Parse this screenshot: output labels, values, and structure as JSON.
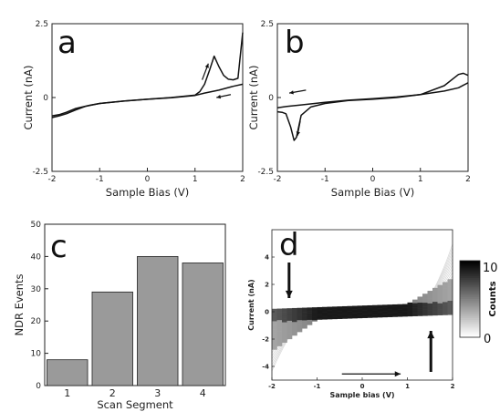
{
  "panels": {
    "a": {
      "label": "a"
    },
    "b": {
      "label": "b"
    },
    "c": {
      "label": "c"
    },
    "d": {
      "label": "d"
    }
  },
  "chart_data": [
    {
      "panel": "a",
      "type": "line",
      "xlabel": "Sample Bias (V)",
      "ylabel": "Current (nA)",
      "xlim": [
        -2,
        2
      ],
      "ylim": [
        -2.5,
        2.5
      ],
      "xticks": [
        "-2",
        "-1",
        "0",
        "1",
        "2"
      ],
      "yticks": [
        "2.5",
        "0",
        "-2.5"
      ],
      "series": [
        {
          "x": [
            -2,
            -1.85,
            -1.7,
            -1.5,
            -1.2,
            -1,
            -0.5,
            0,
            0.5,
            1,
            1.1,
            1.2,
            1.3,
            1.4,
            1.5,
            1.6,
            1.7,
            1.8,
            1.9,
            2
          ],
          "y": [
            -0.62,
            -0.58,
            -0.5,
            -0.37,
            -0.26,
            -0.2,
            -0.12,
            -0.06,
            0.0,
            0.08,
            0.2,
            0.45,
            0.9,
            1.4,
            1.05,
            0.75,
            0.62,
            0.6,
            0.65,
            2.2
          ]
        },
        {
          "x": [
            2,
            1.8,
            1.5,
            1.2,
            1,
            0.5,
            0,
            -0.5,
            -1,
            -1.3,
            -1.5,
            -1.7,
            -1.85,
            -2
          ],
          "y": [
            0.45,
            0.38,
            0.25,
            0.15,
            0.07,
            -0.01,
            -0.06,
            -0.12,
            -0.2,
            -0.3,
            -0.42,
            -0.55,
            -0.62,
            -0.68
          ]
        }
      ]
    },
    {
      "panel": "b",
      "type": "line",
      "xlabel": "Sample Bias (V)",
      "ylabel": "Current (nA)",
      "xlim": [
        -2,
        2
      ],
      "ylim": [
        -2.5,
        2.5
      ],
      "xticks": [
        "-2",
        "-1",
        "0",
        "1",
        "2"
      ],
      "yticks": [
        "2.5",
        "0",
        "-2.5"
      ],
      "series": [
        {
          "x": [
            2,
            1.9,
            1.8,
            1.5,
            1,
            0.5,
            0,
            -0.5,
            -1,
            -1.3,
            -1.5,
            -1.6,
            -1.65,
            -1.72,
            -1.82,
            -1.9,
            -2
          ],
          "y": [
            0.75,
            0.82,
            0.78,
            0.4,
            0.1,
            0.0,
            -0.06,
            -0.1,
            -0.2,
            -0.32,
            -0.6,
            -1.35,
            -1.45,
            -1.0,
            -0.55,
            -0.5,
            -0.48
          ]
        },
        {
          "x": [
            -2,
            -1.8,
            -1.5,
            -1,
            -0.5,
            0,
            0.5,
            1,
            1.5,
            1.8,
            2
          ],
          "y": [
            -0.35,
            -0.3,
            -0.25,
            -0.16,
            -0.09,
            -0.04,
            0.02,
            0.1,
            0.22,
            0.33,
            0.5
          ]
        }
      ]
    },
    {
      "panel": "c",
      "type": "bar",
      "xlabel": "Scan Segment",
      "ylabel": "NDR Events",
      "categories": [
        "1",
        "2",
        "3",
        "4"
      ],
      "values": [
        8,
        29,
        40,
        38
      ],
      "ylim": [
        0,
        50
      ],
      "yticks": [
        "0",
        "10",
        "20",
        "30",
        "40",
        "50"
      ],
      "bar_color": "#9a9a9a"
    },
    {
      "panel": "d",
      "type": "heatmap",
      "xlabel": "Sample bias (V)",
      "ylabel": "Current (nA)",
      "xlim": [
        -2,
        2
      ],
      "ylim": [
        -5,
        6
      ],
      "xticks": [
        "-2",
        "-1",
        "0",
        "1",
        "2"
      ],
      "yticks": [
        "4",
        "2",
        "0",
        "-2",
        "-4"
      ],
      "colorbar": {
        "label": "Counts",
        "max_label": "10",
        "min_label": "0",
        "min": 0,
        "max": 10
      }
    }
  ]
}
